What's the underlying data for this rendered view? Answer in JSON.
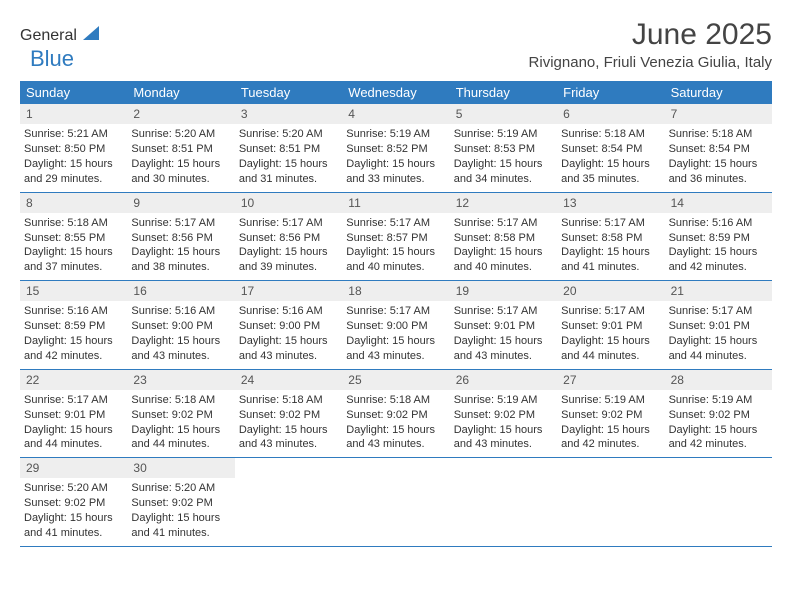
{
  "logo": {
    "part1": "General",
    "part2": "Blue"
  },
  "title": "June 2025",
  "location": "Rivignano, Friuli Venezia Giulia, Italy",
  "weekday_header_bg": "#2f7bbf",
  "weekday_header_fg": "#ffffff",
  "daynum_bg": "#eeeeee",
  "border_color": "#2f7bbf",
  "weekdays": [
    "Sunday",
    "Monday",
    "Tuesday",
    "Wednesday",
    "Thursday",
    "Friday",
    "Saturday"
  ],
  "weeks": [
    [
      {
        "n": "1",
        "sunrise": "5:21 AM",
        "sunset": "8:50 PM",
        "daylight": "15 hours and 29 minutes."
      },
      {
        "n": "2",
        "sunrise": "5:20 AM",
        "sunset": "8:51 PM",
        "daylight": "15 hours and 30 minutes."
      },
      {
        "n": "3",
        "sunrise": "5:20 AM",
        "sunset": "8:51 PM",
        "daylight": "15 hours and 31 minutes."
      },
      {
        "n": "4",
        "sunrise": "5:19 AM",
        "sunset": "8:52 PM",
        "daylight": "15 hours and 33 minutes."
      },
      {
        "n": "5",
        "sunrise": "5:19 AM",
        "sunset": "8:53 PM",
        "daylight": "15 hours and 34 minutes."
      },
      {
        "n": "6",
        "sunrise": "5:18 AM",
        "sunset": "8:54 PM",
        "daylight": "15 hours and 35 minutes."
      },
      {
        "n": "7",
        "sunrise": "5:18 AM",
        "sunset": "8:54 PM",
        "daylight": "15 hours and 36 minutes."
      }
    ],
    [
      {
        "n": "8",
        "sunrise": "5:18 AM",
        "sunset": "8:55 PM",
        "daylight": "15 hours and 37 minutes."
      },
      {
        "n": "9",
        "sunrise": "5:17 AM",
        "sunset": "8:56 PM",
        "daylight": "15 hours and 38 minutes."
      },
      {
        "n": "10",
        "sunrise": "5:17 AM",
        "sunset": "8:56 PM",
        "daylight": "15 hours and 39 minutes."
      },
      {
        "n": "11",
        "sunrise": "5:17 AM",
        "sunset": "8:57 PM",
        "daylight": "15 hours and 40 minutes."
      },
      {
        "n": "12",
        "sunrise": "5:17 AM",
        "sunset": "8:58 PM",
        "daylight": "15 hours and 40 minutes."
      },
      {
        "n": "13",
        "sunrise": "5:17 AM",
        "sunset": "8:58 PM",
        "daylight": "15 hours and 41 minutes."
      },
      {
        "n": "14",
        "sunrise": "5:16 AM",
        "sunset": "8:59 PM",
        "daylight": "15 hours and 42 minutes."
      }
    ],
    [
      {
        "n": "15",
        "sunrise": "5:16 AM",
        "sunset": "8:59 PM",
        "daylight": "15 hours and 42 minutes."
      },
      {
        "n": "16",
        "sunrise": "5:16 AM",
        "sunset": "9:00 PM",
        "daylight": "15 hours and 43 minutes."
      },
      {
        "n": "17",
        "sunrise": "5:16 AM",
        "sunset": "9:00 PM",
        "daylight": "15 hours and 43 minutes."
      },
      {
        "n": "18",
        "sunrise": "5:17 AM",
        "sunset": "9:00 PM",
        "daylight": "15 hours and 43 minutes."
      },
      {
        "n": "19",
        "sunrise": "5:17 AM",
        "sunset": "9:01 PM",
        "daylight": "15 hours and 43 minutes."
      },
      {
        "n": "20",
        "sunrise": "5:17 AM",
        "sunset": "9:01 PM",
        "daylight": "15 hours and 44 minutes."
      },
      {
        "n": "21",
        "sunrise": "5:17 AM",
        "sunset": "9:01 PM",
        "daylight": "15 hours and 44 minutes."
      }
    ],
    [
      {
        "n": "22",
        "sunrise": "5:17 AM",
        "sunset": "9:01 PM",
        "daylight": "15 hours and 44 minutes."
      },
      {
        "n": "23",
        "sunrise": "5:18 AM",
        "sunset": "9:02 PM",
        "daylight": "15 hours and 44 minutes."
      },
      {
        "n": "24",
        "sunrise": "5:18 AM",
        "sunset": "9:02 PM",
        "daylight": "15 hours and 43 minutes."
      },
      {
        "n": "25",
        "sunrise": "5:18 AM",
        "sunset": "9:02 PM",
        "daylight": "15 hours and 43 minutes."
      },
      {
        "n": "26",
        "sunrise": "5:19 AM",
        "sunset": "9:02 PM",
        "daylight": "15 hours and 43 minutes."
      },
      {
        "n": "27",
        "sunrise": "5:19 AM",
        "sunset": "9:02 PM",
        "daylight": "15 hours and 42 minutes."
      },
      {
        "n": "28",
        "sunrise": "5:19 AM",
        "sunset": "9:02 PM",
        "daylight": "15 hours and 42 minutes."
      }
    ],
    [
      {
        "n": "29",
        "sunrise": "5:20 AM",
        "sunset": "9:02 PM",
        "daylight": "15 hours and 41 minutes."
      },
      {
        "n": "30",
        "sunrise": "5:20 AM",
        "sunset": "9:02 PM",
        "daylight": "15 hours and 41 minutes."
      },
      null,
      null,
      null,
      null,
      null
    ]
  ],
  "labels": {
    "sunrise": "Sunrise:",
    "sunset": "Sunset:",
    "daylight": "Daylight:"
  }
}
